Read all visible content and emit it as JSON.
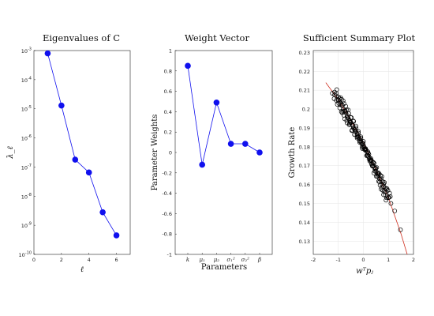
{
  "chart_data": [
    {
      "type": "line",
      "title": "Eigenvalues of C",
      "xlabel": "ℓ",
      "ylabel": "λ_ℓ",
      "yscale": "log",
      "xlim": [
        0,
        7
      ],
      "ylim": [
        1e-10,
        0.001
      ],
      "xticks": [
        0,
        2,
        4,
        6
      ],
      "yticks": [
        {
          "value": 1e-10,
          "label": "10",
          "exp": "-10"
        },
        {
          "value": 1e-09,
          "label": "10",
          "exp": "-9"
        },
        {
          "value": 1e-08,
          "label": "10",
          "exp": "-8"
        },
        {
          "value": 1e-07,
          "label": "10",
          "exp": "-7"
        },
        {
          "value": 1e-06,
          "label": "10",
          "exp": "-6"
        },
        {
          "value": 1e-05,
          "label": "10",
          "exp": "-5"
        },
        {
          "value": 0.0001,
          "label": "10",
          "exp": "-4"
        },
        {
          "value": 0.001,
          "label": "10",
          "exp": "-3"
        }
      ],
      "x": [
        1,
        2,
        3,
        4,
        5,
        6
      ],
      "y": [
        0.0008,
        1.3e-05,
        1.8e-07,
        6.5e-08,
        2.8e-09,
        4.5e-10
      ],
      "color": "#1010ee"
    },
    {
      "type": "line",
      "title": "Weight Vector",
      "xlabel": "Parameters",
      "ylabel": "Parameter Weights",
      "ylim": [
        -1,
        1
      ],
      "yticks": [
        "-1",
        "-0.8",
        "-0.6",
        "-0.4",
        "-0.2",
        "0",
        "0.2",
        "0.4",
        "0.6",
        "0.8",
        "1"
      ],
      "ytick_values": [
        -1,
        -0.8,
        -0.6,
        -0.4,
        -0.2,
        0,
        0.2,
        0.4,
        0.6,
        0.8,
        1
      ],
      "categories": [
        "k",
        "μ₁",
        "μ₂",
        "σ₁²",
        "σ₂²",
        "β"
      ],
      "values": [
        0.85,
        -0.12,
        0.49,
        0.085,
        0.085,
        0.0
      ],
      "color": "#1010ee"
    },
    {
      "type": "scatter",
      "title": "Sufficient Summary Plot",
      "xlabel": "wᵀpⱼ",
      "ylabel": "Growth Rate",
      "xlim": [
        -2,
        2
      ],
      "ylim": [
        0.123,
        0.231
      ],
      "xticks": [
        "-2",
        "-1",
        "0",
        "1",
        "2"
      ],
      "xtick_values": [
        -2,
        -1,
        0,
        1,
        2
      ],
      "yticks": [
        "0.13",
        "0.14",
        "0.15",
        "0.16",
        "0.17",
        "0.18",
        "0.19",
        "0.2",
        "0.21",
        "0.22",
        "0.23"
      ],
      "ytick_values": [
        0.13,
        0.14,
        0.15,
        0.16,
        0.17,
        0.18,
        0.19,
        0.2,
        0.21,
        0.22,
        0.23
      ],
      "grid": true,
      "points_x": [
        -1.15,
        -1.08,
        -1.0,
        -0.95,
        -0.9,
        -0.85,
        -0.8,
        -0.75,
        -0.7,
        -0.65,
        -0.6,
        -0.55,
        -0.5,
        -0.45,
        -0.4,
        -0.35,
        -0.3,
        -0.25,
        -0.2,
        -0.15,
        -0.1,
        -0.05,
        0.0,
        0.05,
        0.1,
        0.15,
        0.2,
        0.25,
        0.3,
        0.35,
        0.4,
        0.45,
        0.5,
        0.55,
        0.6,
        0.65,
        0.7,
        0.75,
        0.8,
        0.85,
        0.9,
        0.95,
        1.0,
        1.1,
        1.25,
        1.48
      ],
      "points_y": [
        0.209,
        0.207,
        0.205,
        0.204,
        0.203,
        0.202,
        0.2,
        0.199,
        0.198,
        0.196,
        0.195,
        0.194,
        0.193,
        0.192,
        0.19,
        0.189,
        0.188,
        0.187,
        0.185,
        0.184,
        0.183,
        0.182,
        0.18,
        0.179,
        0.178,
        0.177,
        0.175,
        0.174,
        0.173,
        0.171,
        0.17,
        0.169,
        0.167,
        0.166,
        0.165,
        0.163,
        0.162,
        0.16,
        0.159,
        0.157,
        0.156,
        0.154,
        0.153,
        0.15,
        0.146,
        0.136
      ],
      "fit_x": [
        -1.5,
        -1.0,
        -0.5,
        0.0,
        0.5,
        1.0,
        1.5,
        1.75
      ],
      "fit_y": [
        0.214,
        0.205,
        0.194,
        0.182,
        0.168,
        0.153,
        0.134,
        0.123
      ],
      "point_color": "#000000",
      "fit_color": "#d03020"
    }
  ]
}
